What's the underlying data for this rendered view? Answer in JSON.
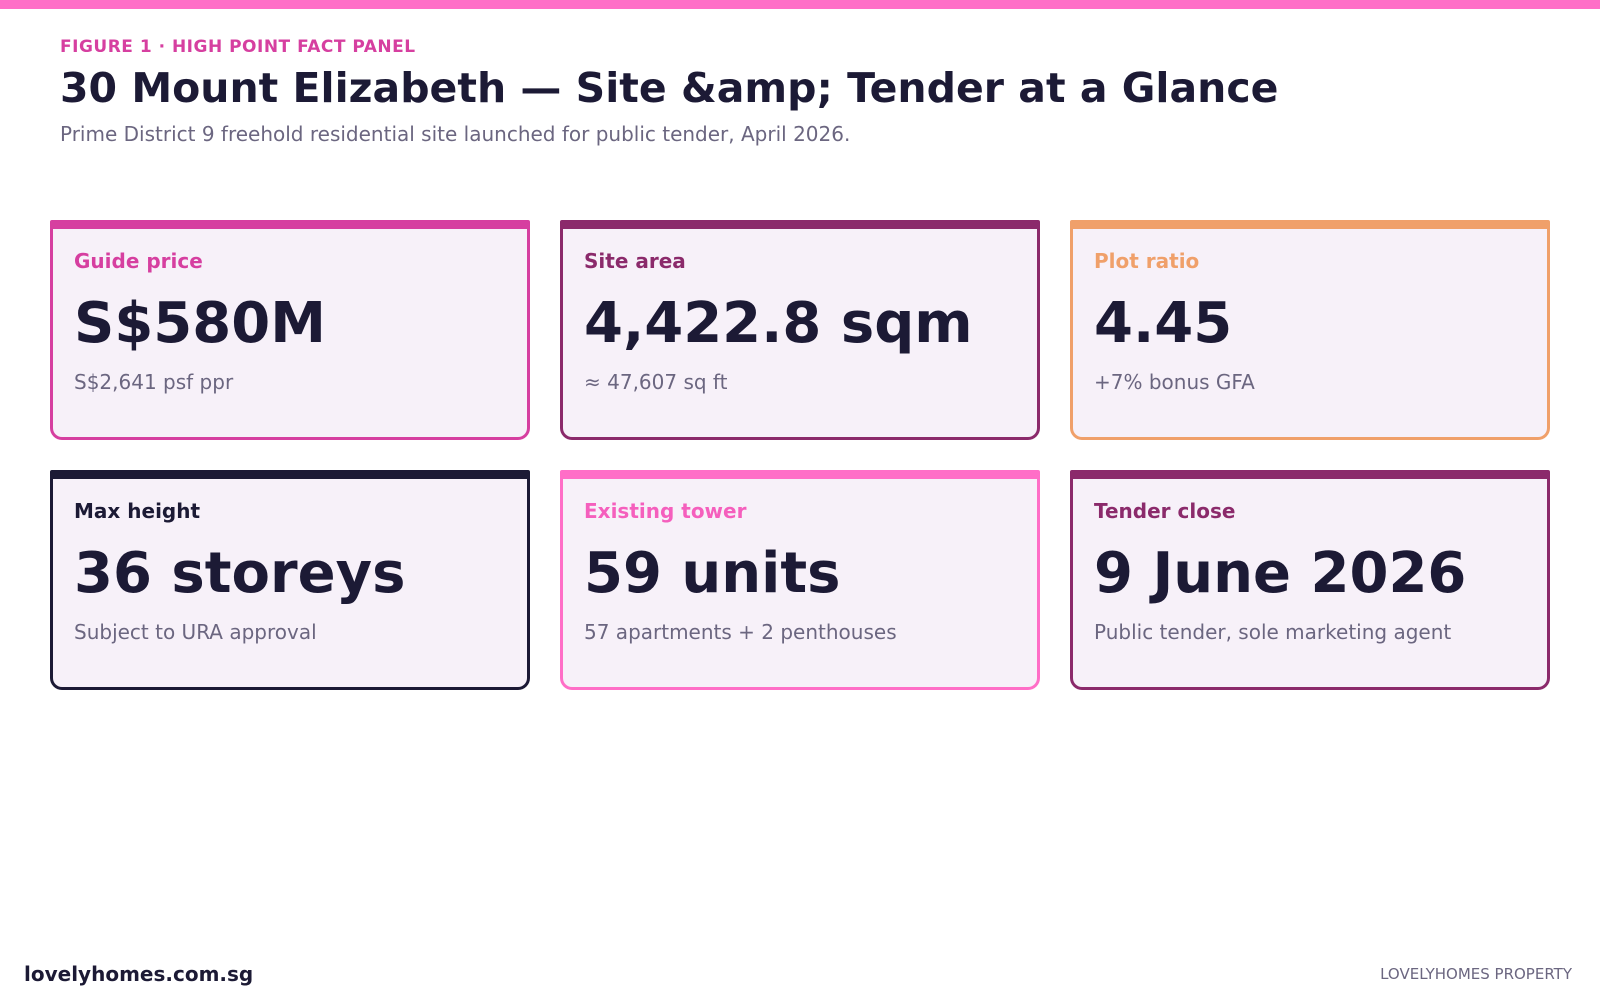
{
  "header": {
    "kicker": "FIGURE 1 · HIGH POINT FACT PANEL",
    "title": "30 Mount Elizabeth — Site &amp; Tender at a Glance",
    "subtitle": "Prime District 9 freehold residential site launched for public tender, April 2026."
  },
  "cards": [
    {
      "label": "Guide price",
      "value": "S$580M",
      "note": "S$2,641 psf ppr"
    },
    {
      "label": "Site area",
      "value": "4,422.8 sqm",
      "note": "≈ 47,607 sq ft"
    },
    {
      "label": "Plot ratio",
      "value": "4.45",
      "note": "+7% bonus GFA"
    },
    {
      "label": "Max height",
      "value": "36 storeys",
      "note": "Subject to URA approval"
    },
    {
      "label": "Existing tower",
      "value": "59 units",
      "note": "57 apartments + 2 penthouses"
    },
    {
      "label": "Tender close",
      "value": "9 June 2026",
      "note": "Public tender, sole marketing agent"
    }
  ],
  "footer": {
    "left": "lovelyhomes.com.sg",
    "right": "LOVELYHOMES PROPERTY"
  }
}
